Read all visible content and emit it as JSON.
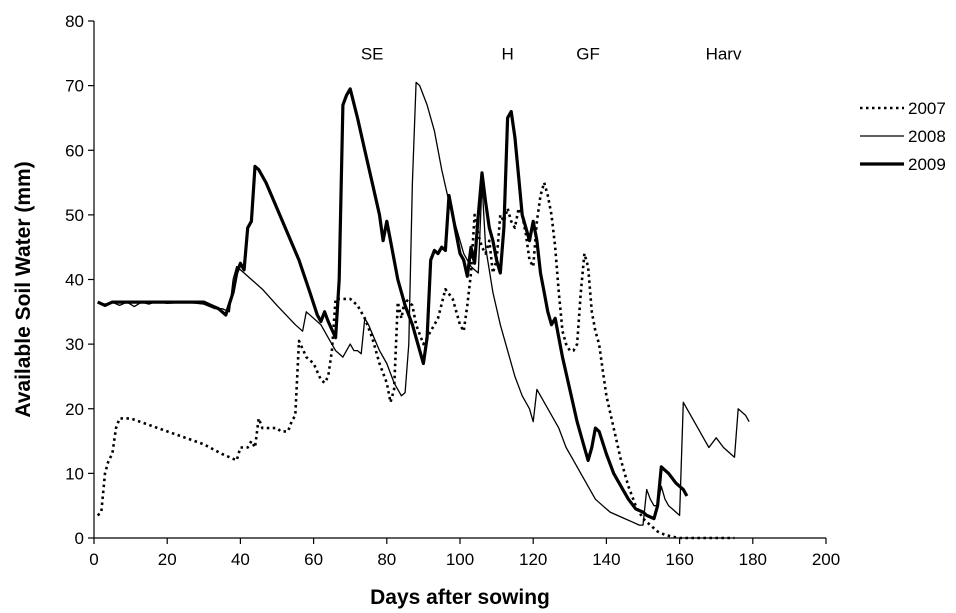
{
  "chart_data": {
    "type": "line",
    "title": "",
    "xlabel": "Days after sowing",
    "ylabel": "Available Soil Water (mm)",
    "xlim": [
      0,
      200
    ],
    "ylim": [
      0,
      80
    ],
    "x_ticks": [
      0,
      20,
      40,
      60,
      80,
      100,
      120,
      140,
      160,
      180,
      200
    ],
    "y_ticks": [
      0,
      10,
      20,
      30,
      40,
      50,
      60,
      70,
      80
    ],
    "grid": false,
    "legend_position": "right",
    "annotations": [
      {
        "text": "SE",
        "x": 76,
        "y": 75
      },
      {
        "text": "H",
        "x": 113,
        "y": 75
      },
      {
        "text": "GF",
        "x": 135,
        "y": 75
      },
      {
        "text": "Harv",
        "x": 172,
        "y": 75
      }
    ],
    "series": [
      {
        "name": "2007",
        "style": "dotted",
        "color": "#000000",
        "points": [
          [
            1,
            3.5
          ],
          [
            2,
            4
          ],
          [
            3,
            10
          ],
          [
            4,
            12
          ],
          [
            5,
            13
          ],
          [
            6,
            17
          ],
          [
            7,
            18.5
          ],
          [
            10,
            18.5
          ],
          [
            15,
            17.5
          ],
          [
            20,
            16.5
          ],
          [
            25,
            15.5
          ],
          [
            30,
            14.5
          ],
          [
            35,
            13
          ],
          [
            39,
            12
          ],
          [
            40,
            14
          ],
          [
            42,
            14
          ],
          [
            43,
            15
          ],
          [
            44,
            14
          ],
          [
            45,
            18.5
          ],
          [
            46,
            17
          ],
          [
            48,
            17
          ],
          [
            50,
            17
          ],
          [
            51,
            16.5
          ],
          [
            53,
            16.5
          ],
          [
            54,
            18
          ],
          [
            55,
            19
          ],
          [
            56,
            30.5
          ],
          [
            58,
            28
          ],
          [
            60,
            27
          ],
          [
            62,
            24.5
          ],
          [
            63,
            24
          ],
          [
            64,
            25
          ],
          [
            65,
            29
          ],
          [
            66,
            37
          ],
          [
            68,
            37
          ],
          [
            70,
            37
          ],
          [
            72,
            36
          ],
          [
            74,
            34
          ],
          [
            76,
            31
          ],
          [
            78,
            27
          ],
          [
            80,
            24
          ],
          [
            81,
            21
          ],
          [
            82,
            23
          ],
          [
            83,
            36.5
          ],
          [
            84,
            34
          ],
          [
            85,
            37
          ],
          [
            87,
            36
          ],
          [
            88,
            33
          ],
          [
            90,
            30
          ],
          [
            92,
            32
          ],
          [
            94,
            34
          ],
          [
            96,
            38.5
          ],
          [
            98,
            37
          ],
          [
            100,
            33
          ],
          [
            101,
            32
          ],
          [
            102,
            36
          ],
          [
            103,
            41
          ],
          [
            104,
            50
          ],
          [
            105,
            47
          ],
          [
            106,
            45
          ],
          [
            107,
            44
          ],
          [
            108,
            46
          ],
          [
            109,
            41
          ],
          [
            110,
            43
          ],
          [
            111,
            50
          ],
          [
            112,
            49
          ],
          [
            113,
            51
          ],
          [
            114,
            49
          ],
          [
            115,
            48
          ],
          [
            116,
            51
          ],
          [
            117,
            50
          ],
          [
            118,
            47
          ],
          [
            119,
            43
          ],
          [
            120,
            42
          ],
          [
            121,
            49
          ],
          [
            122,
            53
          ],
          [
            123,
            55
          ],
          [
            124,
            53
          ],
          [
            125,
            50
          ],
          [
            126,
            45
          ],
          [
            127,
            38
          ],
          [
            128,
            32
          ],
          [
            129,
            30
          ],
          [
            130,
            29
          ],
          [
            131,
            29
          ],
          [
            132,
            30
          ],
          [
            133,
            38
          ],
          [
            134,
            44
          ],
          [
            135,
            42
          ],
          [
            136,
            35
          ],
          [
            137,
            32
          ],
          [
            138,
            30
          ],
          [
            139,
            26
          ],
          [
            140,
            22
          ],
          [
            142,
            17
          ],
          [
            144,
            12
          ],
          [
            146,
            8
          ],
          [
            148,
            5
          ],
          [
            150,
            3
          ],
          [
            152,
            2
          ],
          [
            154,
            1
          ],
          [
            156,
            0.5
          ],
          [
            158,
            0.2
          ],
          [
            160,
            0
          ],
          [
            165,
            0
          ],
          [
            170,
            0
          ],
          [
            175,
            0
          ]
        ]
      },
      {
        "name": "2008",
        "style": "thin",
        "color": "#000000",
        "points": [
          [
            1,
            36.5
          ],
          [
            3,
            36.2
          ],
          [
            5,
            36.5
          ],
          [
            7,
            36
          ],
          [
            9,
            36.5
          ],
          [
            11,
            35.8
          ],
          [
            13,
            36.5
          ],
          [
            15,
            36.2
          ],
          [
            17,
            36.6
          ],
          [
            20,
            36.3
          ],
          [
            25,
            36.5
          ],
          [
            30,
            36.2
          ],
          [
            33,
            35.5
          ],
          [
            35,
            35.5
          ],
          [
            37,
            35
          ],
          [
            38,
            40
          ],
          [
            39,
            42
          ],
          [
            41,
            41
          ],
          [
            43,
            40
          ],
          [
            46,
            38.5
          ],
          [
            50,
            36
          ],
          [
            55,
            33
          ],
          [
            57,
            32
          ],
          [
            58,
            35
          ],
          [
            60,
            34
          ],
          [
            62,
            33
          ],
          [
            64,
            31
          ],
          [
            66,
            29
          ],
          [
            68,
            28
          ],
          [
            70,
            30
          ],
          [
            71,
            29
          ],
          [
            72,
            29
          ],
          [
            73,
            28.5
          ],
          [
            74,
            34
          ],
          [
            75,
            33
          ],
          [
            78,
            29
          ],
          [
            80,
            27
          ],
          [
            82,
            24
          ],
          [
            84,
            22
          ],
          [
            85,
            22.5
          ],
          [
            86,
            30
          ],
          [
            87,
            55
          ],
          [
            88,
            70.5
          ],
          [
            89,
            70
          ],
          [
            91,
            67
          ],
          [
            93,
            63
          ],
          [
            95,
            57
          ],
          [
            97,
            52
          ],
          [
            99,
            48
          ],
          [
            101,
            44
          ],
          [
            103,
            42
          ],
          [
            105,
            41
          ],
          [
            106,
            55
          ],
          [
            107,
            45
          ],
          [
            109,
            38
          ],
          [
            111,
            33
          ],
          [
            113,
            29
          ],
          [
            115,
            25
          ],
          [
            117,
            22
          ],
          [
            119,
            20
          ],
          [
            120,
            18
          ],
          [
            121,
            23
          ],
          [
            123,
            21
          ],
          [
            125,
            19
          ],
          [
            127,
            17
          ],
          [
            129,
            14
          ],
          [
            131,
            12
          ],
          [
            133,
            10
          ],
          [
            135,
            8
          ],
          [
            137,
            6
          ],
          [
            139,
            5
          ],
          [
            141,
            4
          ],
          [
            143,
            3.5
          ],
          [
            145,
            3
          ],
          [
            147,
            2.5
          ],
          [
            149,
            2
          ],
          [
            150,
            2
          ],
          [
            151,
            7.5
          ],
          [
            152,
            6
          ],
          [
            153,
            5
          ],
          [
            154,
            5
          ],
          [
            155,
            8
          ],
          [
            156,
            6
          ],
          [
            157,
            5
          ],
          [
            158,
            4.5
          ],
          [
            159,
            4
          ],
          [
            160,
            3.5
          ],
          [
            161,
            21
          ],
          [
            163,
            19
          ],
          [
            165,
            17
          ],
          [
            167,
            15
          ],
          [
            168,
            14
          ],
          [
            170,
            15.5
          ],
          [
            172,
            14
          ],
          [
            174,
            13
          ],
          [
            175,
            12.5
          ],
          [
            176,
            20
          ],
          [
            177,
            19.5
          ],
          [
            178,
            19
          ],
          [
            179,
            18
          ]
        ]
      },
      {
        "name": "2009",
        "style": "thick",
        "color": "#000000",
        "points": [
          [
            1,
            36.5
          ],
          [
            3,
            36
          ],
          [
            5,
            36.5
          ],
          [
            10,
            36.5
          ],
          [
            15,
            36.5
          ],
          [
            20,
            36.5
          ],
          [
            25,
            36.5
          ],
          [
            30,
            36.5
          ],
          [
            32,
            36
          ],
          [
            34,
            35.5
          ],
          [
            36,
            34.5
          ],
          [
            38,
            38
          ],
          [
            39,
            41
          ],
          [
            40,
            42.5
          ],
          [
            41,
            41.5
          ],
          [
            42,
            48
          ],
          [
            43,
            49
          ],
          [
            44,
            57.5
          ],
          [
            45,
            57
          ],
          [
            47,
            55
          ],
          [
            50,
            51
          ],
          [
            53,
            47
          ],
          [
            56,
            43
          ],
          [
            59,
            38
          ],
          [
            61,
            34.5
          ],
          [
            62,
            33.5
          ],
          [
            63,
            35
          ],
          [
            64,
            33.5
          ],
          [
            66,
            31
          ],
          [
            67,
            40
          ],
          [
            68,
            67
          ],
          [
            69,
            68.5
          ],
          [
            70,
            69.5
          ],
          [
            72,
            65
          ],
          [
            74,
            60
          ],
          [
            76,
            55
          ],
          [
            78,
            50
          ],
          [
            79,
            46
          ],
          [
            80,
            49
          ],
          [
            81,
            46
          ],
          [
            83,
            40
          ],
          [
            85,
            36
          ],
          [
            87,
            33
          ],
          [
            89,
            29
          ],
          [
            90,
            27
          ],
          [
            91,
            31
          ],
          [
            92,
            43
          ],
          [
            93,
            44.5
          ],
          [
            94,
            44
          ],
          [
            95,
            45
          ],
          [
            96,
            44.5
          ],
          [
            97,
            53
          ],
          [
            98,
            50
          ],
          [
            99,
            47
          ],
          [
            100,
            44
          ],
          [
            101,
            43
          ],
          [
            102,
            40.5
          ],
          [
            103,
            45
          ],
          [
            104,
            42.5
          ],
          [
            105,
            50
          ],
          [
            106,
            56.5
          ],
          [
            107,
            52
          ],
          [
            108,
            48
          ],
          [
            109,
            46
          ],
          [
            110,
            43
          ],
          [
            111,
            41
          ],
          [
            112,
            48
          ],
          [
            113,
            65
          ],
          [
            114,
            66
          ],
          [
            115,
            62
          ],
          [
            116,
            56
          ],
          [
            117,
            50
          ],
          [
            118,
            48
          ],
          [
            119,
            46
          ],
          [
            120,
            49
          ],
          [
            121,
            46
          ],
          [
            122,
            41
          ],
          [
            123,
            38
          ],
          [
            124,
            35
          ],
          [
            125,
            33
          ],
          [
            126,
            34
          ],
          [
            127,
            31
          ],
          [
            128,
            28
          ],
          [
            130,
            23
          ],
          [
            132,
            18
          ],
          [
            134,
            14
          ],
          [
            135,
            12
          ],
          [
            136,
            14
          ],
          [
            137,
            17
          ],
          [
            138,
            16.5
          ],
          [
            140,
            13
          ],
          [
            142,
            10
          ],
          [
            144,
            8
          ],
          [
            146,
            6
          ],
          [
            148,
            4.5
          ],
          [
            150,
            4
          ],
          [
            151,
            3.5
          ],
          [
            153,
            3
          ],
          [
            154,
            5
          ],
          [
            155,
            11
          ],
          [
            157,
            10
          ],
          [
            159,
            8.5
          ],
          [
            160,
            8
          ],
          [
            161,
            7.5
          ],
          [
            162,
            6.5
          ]
        ]
      }
    ]
  }
}
